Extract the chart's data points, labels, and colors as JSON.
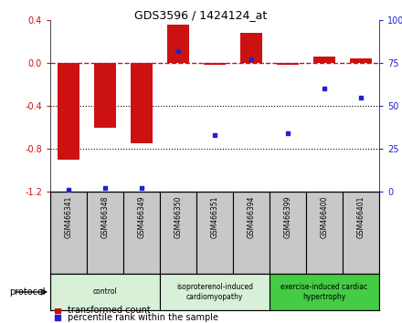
{
  "title": "GDS3596 / 1424124_at",
  "samples": [
    "GSM466341",
    "GSM466348",
    "GSM466349",
    "GSM466350",
    "GSM466351",
    "GSM466394",
    "GSM466399",
    "GSM466400",
    "GSM466401"
  ],
  "transformed_count": [
    -0.9,
    -0.6,
    -0.75,
    0.36,
    -0.02,
    0.28,
    -0.02,
    0.06,
    0.04
  ],
  "percentile_rank": [
    1,
    2,
    2,
    82,
    33,
    77,
    34,
    60,
    55
  ],
  "ylim_left": [
    -1.2,
    0.4
  ],
  "ylim_right": [
    0,
    100
  ],
  "yticks_left": [
    -1.2,
    -0.8,
    -0.4,
    0.0,
    0.4
  ],
  "yticks_right": [
    0,
    25,
    50,
    75,
    100
  ],
  "bar_color": "#cc1111",
  "dot_color": "#2222cc",
  "dashed_line_color": "#cc1111",
  "groups": [
    {
      "label": "control",
      "start": 0,
      "end": 3,
      "color": "#d8f0d8"
    },
    {
      "label": "isoproterenol-induced\ncardiomyopathy",
      "start": 3,
      "end": 6,
      "color": "#d8f0d8"
    },
    {
      "label": "exercise-induced cardiac\nhypertrophy",
      "start": 6,
      "end": 9,
      "color": "#44cc44"
    }
  ],
  "protocol_label": "protocol",
  "legend_items": [
    {
      "label": "transformed count",
      "color": "#cc1111"
    },
    {
      "label": "percentile rank within the sample",
      "color": "#2222cc"
    }
  ]
}
